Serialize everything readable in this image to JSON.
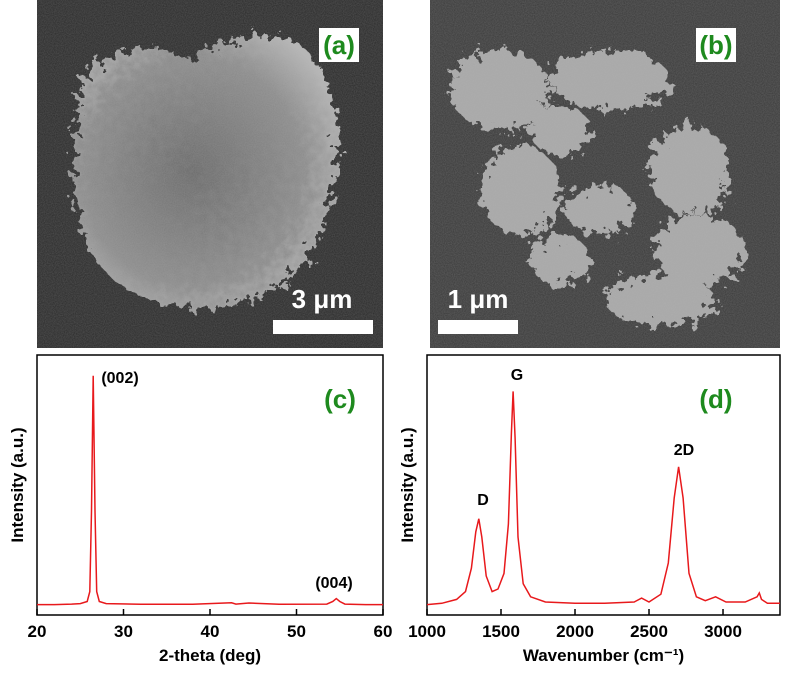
{
  "images": [
    {
      "label": "(a)",
      "scale": "3 μm"
    },
    {
      "label": "(b)",
      "scale": "1 μm"
    }
  ],
  "chart_data": [
    {
      "type": "line",
      "panel": "(c)",
      "xlabel": "2-theta (deg)",
      "ylabel": "Intensity (a.u.)",
      "xlim": [
        20,
        60
      ],
      "ylim": [
        0,
        100
      ],
      "xticks": [
        20,
        30,
        40,
        50,
        60
      ],
      "annotations": [
        "(002)",
        "(004)"
      ],
      "series": [
        {
          "color": "#e8191c",
          "x": [
            20,
            22,
            24,
            25,
            25.8,
            26.1,
            26.3,
            26.5,
            26.7,
            26.9,
            27.2,
            28,
            32,
            38,
            42.5,
            43,
            44.5,
            48,
            53.5,
            54.2,
            54.6,
            55,
            55.6,
            58,
            60
          ],
          "values": [
            4,
            4,
            4.2,
            4.4,
            5.2,
            9,
            40,
            92,
            40,
            9,
            5.2,
            4.4,
            4.1,
            4.1,
            4.7,
            4.2,
            4.6,
            4.1,
            4.2,
            5.2,
            6.3,
            5.2,
            4.2,
            4,
            4
          ]
        }
      ]
    },
    {
      "type": "line",
      "panel": "(d)",
      "xlabel": "Wavenumber (cm⁻¹)",
      "ylabel": "Intensity (a.u.)",
      "xlim": [
        1000,
        3385
      ],
      "ylim": [
        0,
        100
      ],
      "xticks": [
        1000,
        1500,
        2000,
        2500,
        3000
      ],
      "annotations": [
        "D",
        "G",
        "2D"
      ],
      "series": [
        {
          "color": "#e8191c",
          "x": [
            1000,
            1100,
            1200,
            1260,
            1300,
            1330,
            1350,
            1370,
            1400,
            1440,
            1480,
            1520,
            1550,
            1570,
            1582,
            1595,
            1615,
            1650,
            1700,
            1800,
            2000,
            2200,
            2400,
            2450,
            2500,
            2580,
            2630,
            2670,
            2700,
            2730,
            2770,
            2820,
            2880,
            2950,
            3020,
            3150,
            3230,
            3245,
            3260,
            3300,
            3385
          ],
          "values": [
            4,
            4.5,
            6,
            9,
            18,
            32,
            37,
            30,
            15,
            9,
            10,
            16,
            35,
            70,
            86,
            68,
            30,
            12,
            7,
            5,
            4.5,
            4.5,
            5,
            6.5,
            5,
            8,
            20,
            45,
            57,
            45,
            16,
            7,
            5.5,
            7,
            5,
            5,
            7,
            8.5,
            6,
            4.5,
            4.5
          ]
        }
      ]
    }
  ]
}
